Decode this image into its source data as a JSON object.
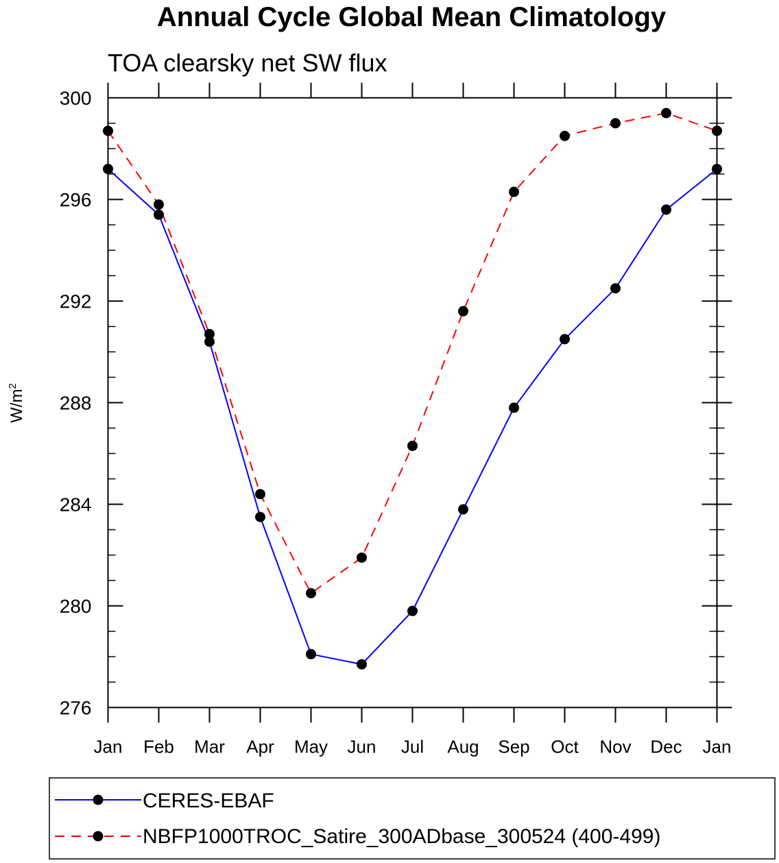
{
  "chart_data": {
    "type": "line",
    "title": "Annual Cycle Global Mean Climatology",
    "subtitle": "TOA clearsky net SW flux",
    "ylabel": "W/m",
    "ylabel_sup": "2",
    "xlabel": "",
    "categories": [
      "Jan",
      "Feb",
      "Mar",
      "Apr",
      "May",
      "Jun",
      "Jul",
      "Aug",
      "Sep",
      "Oct",
      "Nov",
      "Dec",
      "Jan"
    ],
    "ylim": [
      276,
      300
    ],
    "yticks": [
      276,
      280,
      284,
      288,
      292,
      296,
      300
    ],
    "grid": false,
    "legend_position": "bottom",
    "series": [
      {
        "name": "CERES-EBAF",
        "color": "#0000ff",
        "dash": "solid",
        "values": [
          297.2,
          295.4,
          290.4,
          283.5,
          278.1,
          277.7,
          279.8,
          283.8,
          287.8,
          290.5,
          292.5,
          295.6,
          297.2
        ]
      },
      {
        "name": "NBFP1000TROC_Satire_300ADbase_300524 (400-499)",
        "color": "#ff0000",
        "dash": "dashed",
        "values": [
          298.7,
          295.8,
          290.7,
          284.4,
          280.5,
          281.9,
          286.3,
          291.6,
          296.3,
          298.5,
          299.0,
          299.4,
          298.7
        ]
      }
    ]
  }
}
